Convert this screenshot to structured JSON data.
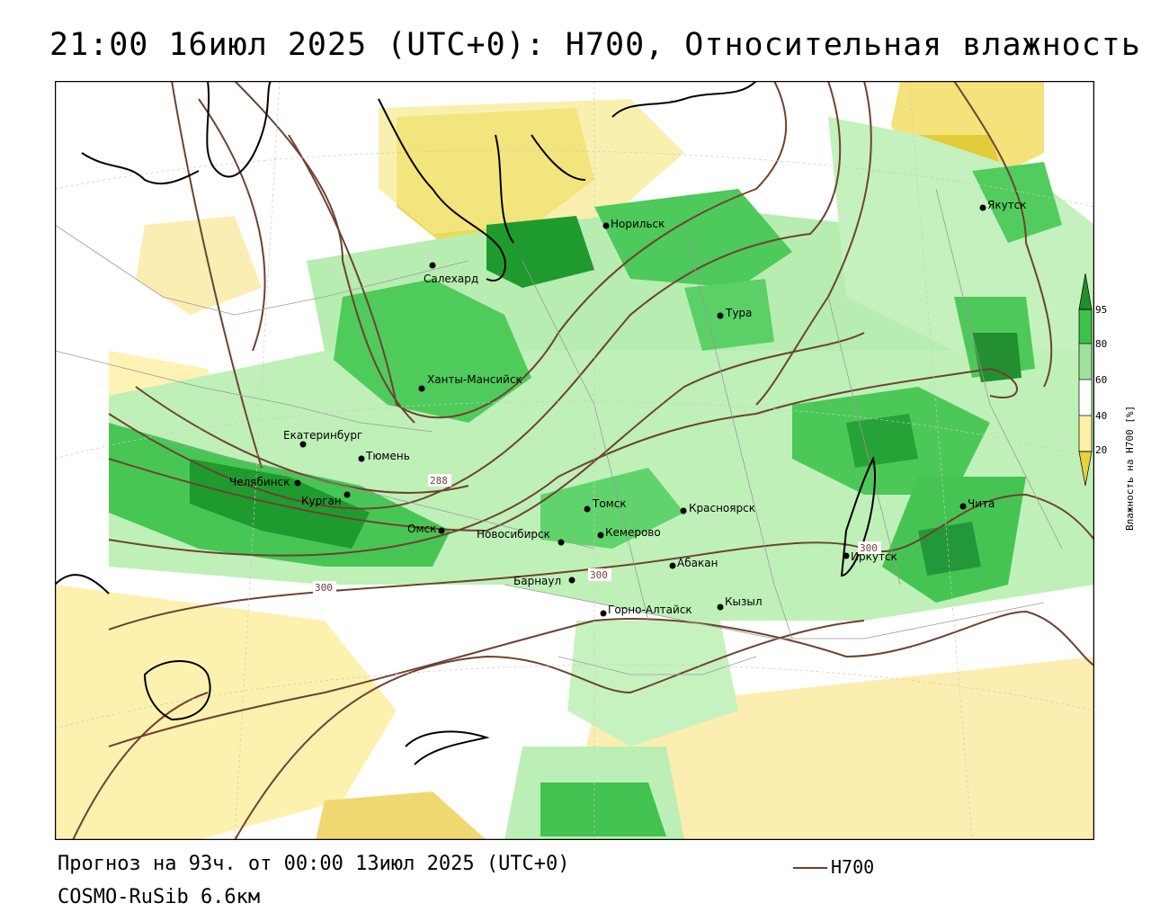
{
  "title": "21:00 16июл 2025 (UTC+0): H700, Относительная влажность",
  "forecast_line": "Прогноз на 93ч. от 00:00 13июл 2025 (UTC+0)",
  "model_line": "COSMO-RuSib 6.6км",
  "legend_line_label": "H700",
  "colorbar": {
    "label": "Влажность на H700 [%]",
    "ticks": [
      "95",
      "80",
      "60",
      "40",
      "20"
    ],
    "colors": [
      "#1f8f2e",
      "#3fc04c",
      "#9fe29c",
      "#ffffff",
      "#fff0a8",
      "#e8d040"
    ]
  },
  "contour_labels": [
    "288",
    "300",
    "300",
    "300"
  ],
  "cities": [
    {
      "name": "Салехард"
    },
    {
      "name": "Норильск"
    },
    {
      "name": "Якутск"
    },
    {
      "name": "Тура"
    },
    {
      "name": "Ханты-Мансийск"
    },
    {
      "name": "Екатеринбург"
    },
    {
      "name": "Тюмень"
    },
    {
      "name": "Челябинск"
    },
    {
      "name": "Курган"
    },
    {
      "name": "Омск"
    },
    {
      "name": "Томск"
    },
    {
      "name": "Красноярск"
    },
    {
      "name": "Новосибирск"
    },
    {
      "name": "Кемерово"
    },
    {
      "name": "Барнаул"
    },
    {
      "name": "Абакан"
    },
    {
      "name": "Иркутск"
    },
    {
      "name": "Чита"
    },
    {
      "name": "Кызыл"
    },
    {
      "name": "Горно-Алтайск"
    }
  ]
}
